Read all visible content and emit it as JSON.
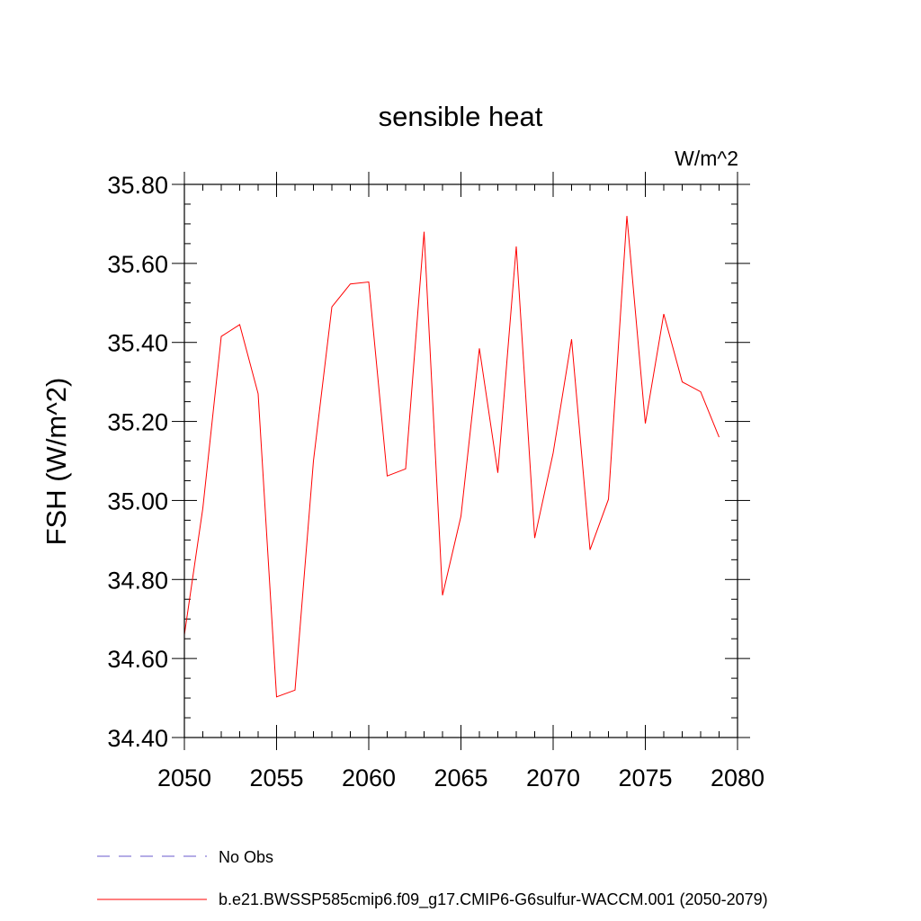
{
  "chart_data": {
    "type": "line",
    "title": "sensible heat",
    "units": "W/m^2",
    "ylabel": "FSH  (W/m^2)",
    "xlabel": "",
    "xlim": [
      2050,
      2080
    ],
    "ylim": [
      34.4,
      35.8
    ],
    "x_ticks": [
      "2050",
      "2055",
      "2060",
      "2065",
      "2070",
      "2075",
      "2080"
    ],
    "y_ticks": [
      "34.40",
      "34.60",
      "34.80",
      "35.00",
      "35.20",
      "35.40",
      "35.60",
      "35.80"
    ],
    "grid": false,
    "series": [
      {
        "name": "b.e21.BWSSP585cmip6.f09_g17.CMIP6-G6sulfur-WACCM.001 (2050-2079)",
        "color": "#ff0000",
        "x": [
          2050,
          2051,
          2052,
          2053,
          2054,
          2055,
          2056,
          2057,
          2058,
          2059,
          2060,
          2061,
          2062,
          2063,
          2064,
          2065,
          2066,
          2067,
          2068,
          2069,
          2070,
          2071,
          2072,
          2073,
          2074,
          2075,
          2076,
          2077,
          2078,
          2079
        ],
        "y": [
          34.66,
          34.98,
          35.415,
          35.445,
          35.27,
          34.503,
          34.52,
          35.1,
          35.49,
          35.548,
          35.553,
          35.062,
          35.08,
          35.68,
          34.76,
          34.96,
          35.385,
          35.07,
          35.643,
          34.905,
          35.12,
          35.408,
          34.875,
          35.003,
          35.72,
          35.195,
          35.472,
          35.3,
          35.275,
          35.16
        ]
      }
    ],
    "legend": {
      "placement": "bottom",
      "entries": [
        {
          "label": "No Obs",
          "color": "#6a5acd",
          "style": "dashed"
        },
        {
          "label": "b.e21.BWSSP585cmip6.f09_g17.CMIP6-G6sulfur-WACCM.001 (2050-2079)",
          "color": "#ff0000",
          "style": "solid"
        }
      ]
    }
  }
}
